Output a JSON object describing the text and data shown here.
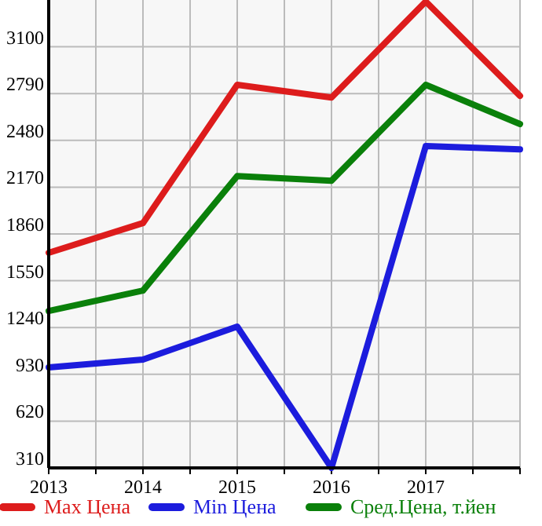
{
  "chart_data": {
    "type": "line",
    "x": [
      2013,
      2014,
      2015,
      2016,
      2017,
      2018
    ],
    "series": [
      {
        "name": "Max Цена",
        "color": "#dd1c1c",
        "values": [
          1735,
          1932,
          2848,
          2764,
          3400,
          2775
        ]
      },
      {
        "name": "Min Цена",
        "color": "#1c1cdd",
        "values": [
          976,
          1028,
          1246,
          310,
          2442,
          2421
        ]
      },
      {
        "name": "Сред.Цена, т.йен",
        "color": "#0a800a",
        "values": [
          1350,
          1485,
          2244,
          2213,
          2848,
          2588
        ]
      }
    ],
    "xlim": [
      2013,
      2018
    ],
    "xticks": [
      2013,
      {
        "value": 2013.5,
        "label": null
      },
      2014,
      {
        "value": 2014.5,
        "label": null
      },
      2015,
      {
        "value": 2015.5,
        "label": null
      },
      2016,
      {
        "value": 2016.5,
        "label": null
      },
      2017,
      {
        "value": 2017.5,
        "label": null
      },
      {
        "value": 2018,
        "label": null
      }
    ],
    "ylim": [
      310,
      3410
    ],
    "yticks": [
      310,
      620,
      930,
      1240,
      1550,
      1860,
      2170,
      2480,
      2790,
      3100
    ],
    "grid": true,
    "legend": "bottom",
    "marker": "none",
    "line_style": "solid"
  }
}
